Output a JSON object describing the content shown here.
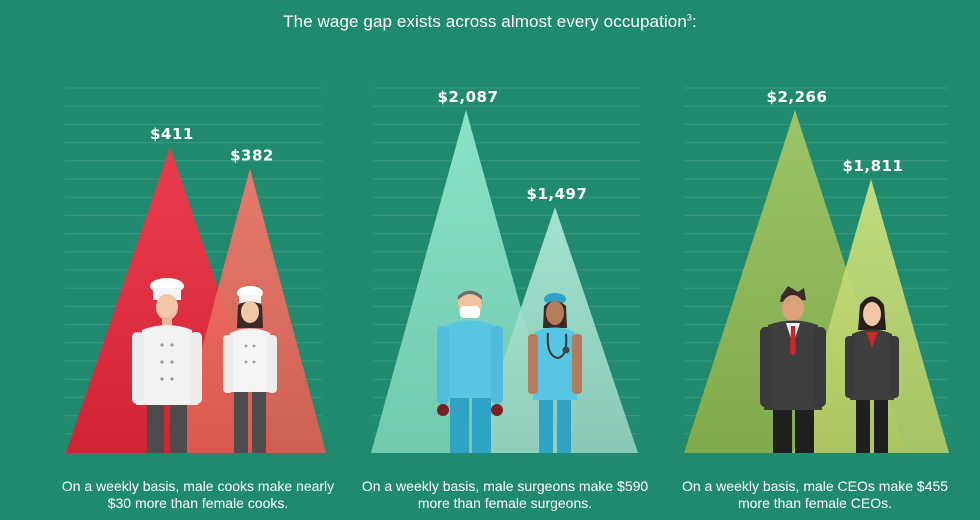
{
  "title": "The wage gap exists across almost every occupation",
  "title_footnote": "3",
  "colors": {
    "background": "#208a6f",
    "cooks_male": "#e8273a",
    "cooks_female": "#f5685a",
    "surgeons_male": "#7ddfc1",
    "surgeons_female": "#a5e6d2",
    "ceos_male": "#8fbd55",
    "ceos_female": "#c6e070"
  },
  "captions": {
    "cooks": "On a weekly basis, male cooks make nearly $30 more than female cooks.",
    "surgeons": "On a weekly basis, male surgeons make $590 more than female surgeons.",
    "ceos": "On a weekly basis, male CEOs make $455 more than female CEOs."
  },
  "chart_data": [
    {
      "type": "area",
      "categories": [
        "Male cooks",
        "Female cooks"
      ],
      "values": [
        411,
        382
      ],
      "labels": [
        "$411",
        "$382"
      ],
      "unit": "USD per week"
    },
    {
      "type": "area",
      "categories": [
        "Male surgeons",
        "Female surgeons"
      ],
      "values": [
        2087,
        1497
      ],
      "labels": [
        "$2,087",
        "$1,497"
      ],
      "unit": "USD per week"
    },
    {
      "type": "area",
      "categories": [
        "Male CEOs",
        "Female CEOs"
      ],
      "values": [
        2266,
        1811
      ],
      "labels": [
        "$2,266",
        "$1,811"
      ],
      "unit": "USD per week"
    }
  ]
}
